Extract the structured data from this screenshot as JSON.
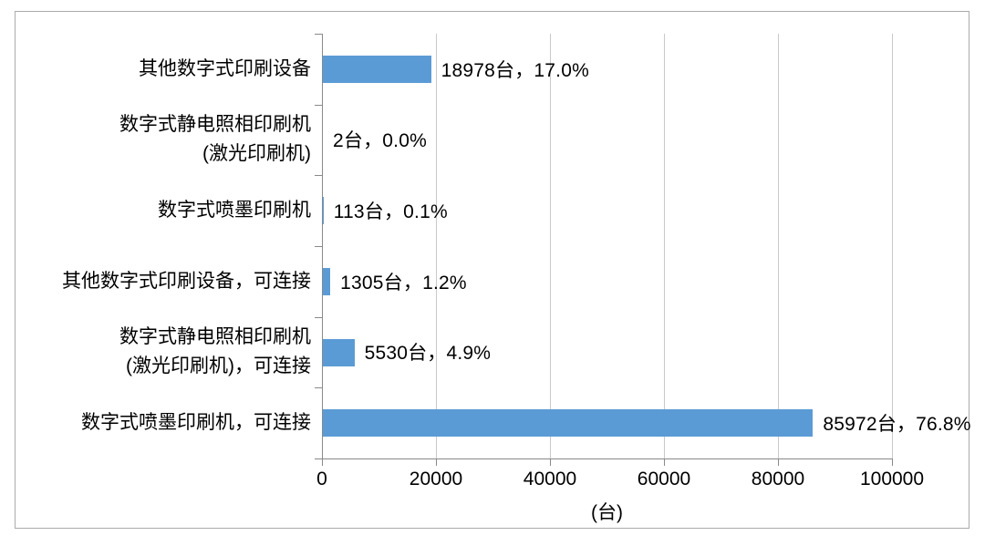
{
  "chart_data": {
    "type": "bar",
    "orientation": "horizontal",
    "title": "",
    "xlabel": "(台)",
    "ylabel": "",
    "xlim": [
      0,
      100000
    ],
    "x_tick_interval": 20000,
    "x_ticks": [
      "0",
      "20000",
      "40000",
      "60000",
      "80000",
      "100000"
    ],
    "grid": "vertical-only",
    "legend": "none",
    "bar_color": "#5b9bd5",
    "categories": [
      [
        "其他数字式印刷设备"
      ],
      [
        "数字式静电照相印刷机",
        "(激光印刷机)"
      ],
      [
        "数字式喷墨印刷机"
      ],
      [
        "其他数字式印刷设备，可连接"
      ],
      [
        "数字式静电照相印刷机",
        "(激光印刷机)，可连接"
      ],
      [
        "数字式喷墨印刷机，可连接"
      ]
    ],
    "values": [
      18978,
      2,
      113,
      1305,
      5530,
      85972
    ],
    "percentages": [
      17.0,
      0.0,
      0.1,
      1.2,
      4.9,
      76.8
    ],
    "data_labels": [
      "18978台，17.0%",
      "2台，0.0%",
      "113台，0.1%",
      "1305台，1.2%",
      "5530台，4.9%",
      "85972台，76.8%"
    ]
  },
  "colors": {
    "bar": "#5b9bd5",
    "gridline": "#c9c9c9",
    "axis_line": "#898989",
    "frame_border": "#ababab",
    "text": "#000000",
    "background": "#ffffff"
  }
}
